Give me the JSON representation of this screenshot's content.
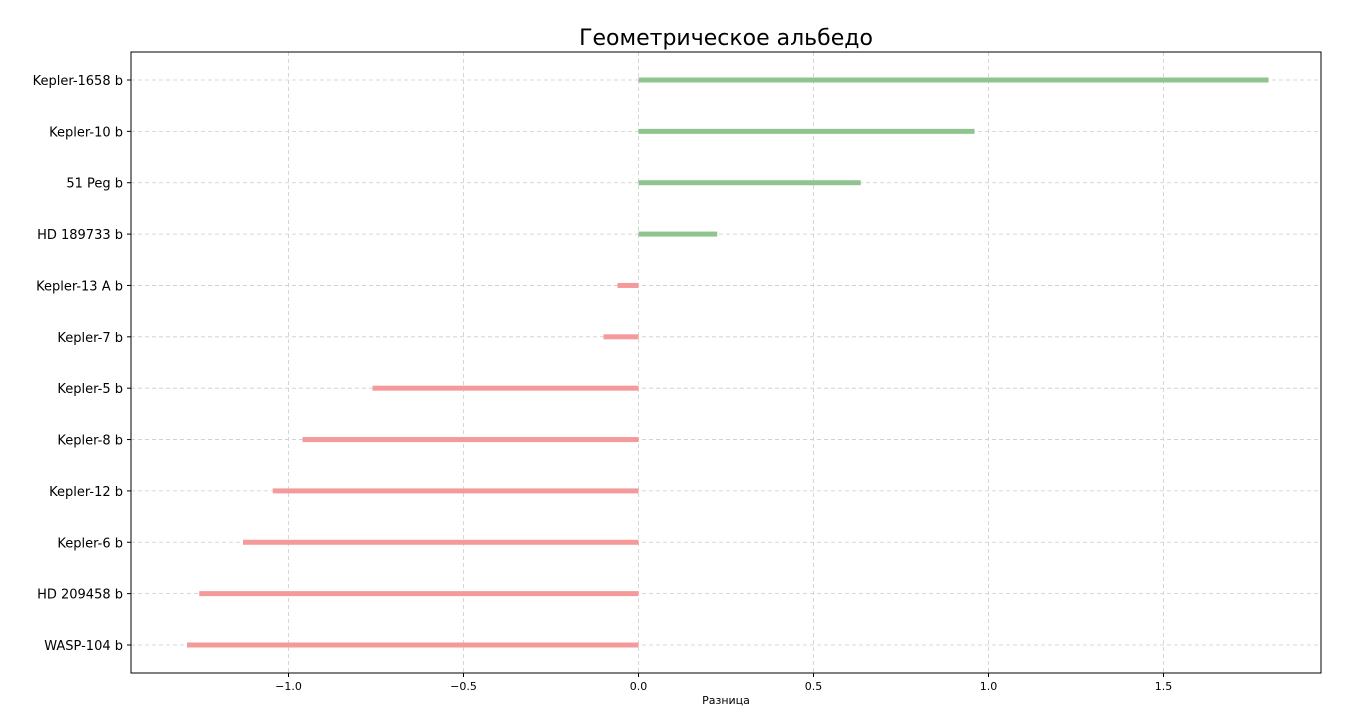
{
  "chart_data": {
    "type": "bar",
    "orientation": "horizontal",
    "title": "Геометрическое альбедо",
    "xlabel": "Разница",
    "ylabel": "",
    "categories": [
      "WASP-104 b",
      "HD 209458 b",
      "Kepler-6 b",
      "Kepler-12 b",
      "Kepler-8 b",
      "Kepler-5 b",
      "Kepler-7 b",
      "Kepler-13 A b",
      "HD 189733 b",
      "51 Peg b",
      "Kepler-10 b",
      "Kepler-1658 b"
    ],
    "values": [
      -1.29,
      -1.255,
      -1.13,
      -1.045,
      -0.96,
      -0.76,
      -0.1,
      -0.06,
      0.225,
      0.635,
      0.96,
      1.8
    ],
    "xlim": [
      -1.45,
      1.95
    ],
    "xticks": [
      -1.0,
      -0.5,
      0.0,
      0.5,
      1.0,
      1.5
    ],
    "xtick_labels": [
      "−1.0",
      "−0.5",
      "0.0",
      "0.5",
      "1.0",
      "1.5"
    ],
    "grid": true,
    "colors": {
      "positive": "#8fc48f",
      "negative": "#f59a9a",
      "grid": "#cccccc",
      "axis": "#000000"
    }
  }
}
